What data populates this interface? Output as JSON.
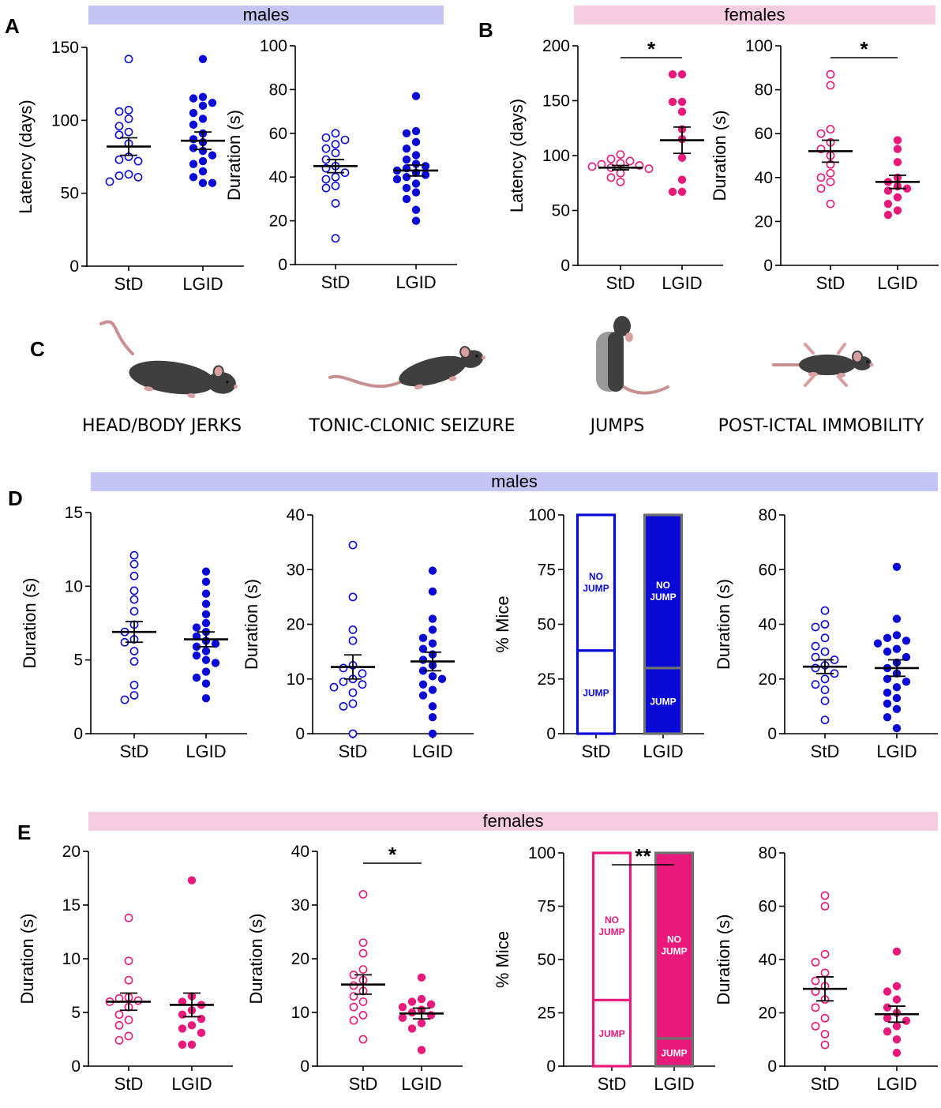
{
  "colors": {
    "male": "#0a0ad6",
    "female": "#e8197a",
    "male_banner": "#c4c4f5",
    "female_banner": "#f5cce0",
    "axis": "#000000",
    "bar_edge_lgid": "#707070"
  },
  "banners": [
    {
      "id": "b1",
      "text": "males",
      "sex": "male"
    },
    {
      "id": "b2",
      "text": "females",
      "sex": "female"
    },
    {
      "id": "b3",
      "text": "males",
      "sex": "male"
    },
    {
      "id": "b4",
      "text": "females",
      "sex": "female"
    }
  ],
  "panel_letters": [
    "A",
    "B",
    "C",
    "D",
    "E"
  ],
  "behaviors": [
    {
      "label": "HEAD/BODY JERKS",
      "icon": "mouse-running-icon"
    },
    {
      "label": "TONIC-CLONIC SEIZURE",
      "icon": "mouse-crouching-icon"
    },
    {
      "label": "JUMPS",
      "icon": "mouse-jumping-icon"
    },
    {
      "label": "POST-ICTAL IMMOBILITY",
      "icon": "mouse-lying-icon"
    }
  ],
  "chart_data": [
    {
      "id": "A1",
      "type": "scatter",
      "panel": "A",
      "sex": "male",
      "ylabel": "Latency (days)",
      "ylim": [
        0,
        150
      ],
      "yticks": [
        0,
        50,
        100,
        150
      ],
      "categories": [
        "StD",
        "LGID"
      ],
      "groups": [
        {
          "name": "StD",
          "values": [
            142,
            107,
            106,
            101,
            96,
            92,
            90,
            84,
            75,
            73,
            72,
            63,
            62,
            61,
            58
          ],
          "mean": 82,
          "sem": 6
        },
        {
          "name": "LGID",
          "values": [
            142,
            116,
            115,
            112,
            110,
            105,
            101,
            97,
            91,
            87,
            85,
            81,
            79,
            76,
            72,
            70,
            65,
            61,
            57,
            57
          ],
          "mean": 86,
          "sem": 6
        }
      ]
    },
    {
      "id": "A2",
      "type": "scatter",
      "panel": "A",
      "sex": "male",
      "ylabel": "Duration (s)",
      "ylim": [
        0,
        100
      ],
      "yticks": [
        0,
        20,
        40,
        60,
        80,
        100
      ],
      "categories": [
        "StD",
        "LGID"
      ],
      "groups": [
        {
          "name": "StD",
          "values": [
            60,
            58,
            57,
            55,
            53,
            51,
            48,
            45,
            44,
            42,
            40,
            39,
            36,
            35,
            28,
            12
          ],
          "mean": 45,
          "sem": 3
        },
        {
          "name": "LGID",
          "values": [
            77,
            61,
            60,
            56,
            53,
            50,
            48,
            46,
            45,
            44,
            43,
            42,
            41,
            40,
            39,
            37,
            35,
            33,
            30,
            25,
            20
          ],
          "mean": 43,
          "sem": 2.5
        }
      ]
    },
    {
      "id": "B1",
      "type": "scatter",
      "panel": "B",
      "sex": "female",
      "ylabel": "Latency (days)",
      "ylim": [
        0,
        200
      ],
      "yticks": [
        0,
        50,
        100,
        150,
        200
      ],
      "categories": [
        "StD",
        "LGID"
      ],
      "significance": "*",
      "groups": [
        {
          "name": "StD",
          "values": [
            101,
            97,
            95,
            93,
            92,
            91,
            90,
            89,
            88,
            84,
            80,
            76
          ],
          "mean": 89,
          "sem": 2
        },
        {
          "name": "LGID",
          "values": [
            174,
            174,
            149,
            149,
            140,
            124,
            115,
            98,
            78,
            67,
            67
          ],
          "mean": 114,
          "sem": 12
        }
      ]
    },
    {
      "id": "B2",
      "type": "scatter",
      "panel": "B",
      "sex": "female",
      "ylabel": "Duration (s)",
      "ylim": [
        0,
        100
      ],
      "yticks": [
        0,
        20,
        40,
        60,
        80,
        100
      ],
      "categories": [
        "StD",
        "LGID"
      ],
      "significance": "*",
      "groups": [
        {
          "name": "StD",
          "values": [
            87,
            82,
            62,
            60,
            56,
            53,
            50,
            46,
            42,
            40,
            38,
            35,
            28
          ],
          "mean": 52,
          "sem": 5
        },
        {
          "name": "LGID",
          "values": [
            57,
            53,
            47,
            40,
            38,
            36,
            35,
            34,
            31,
            28,
            25,
            23
          ],
          "mean": 38,
          "sem": 3
        }
      ]
    },
    {
      "id": "D1",
      "type": "scatter",
      "panel": "D",
      "sex": "male",
      "ylabel": "Duration (s)",
      "ylim": [
        0,
        15
      ],
      "yticks": [
        0,
        5,
        10,
        15
      ],
      "categories": [
        "StD",
        "LGID"
      ],
      "groups": [
        {
          "name": "StD",
          "values": [
            12.1,
            11.5,
            10.7,
            9.7,
            9.1,
            8.3,
            7.4,
            6.9,
            6.4,
            6.2,
            5.6,
            4.9,
            3.3,
            2.6,
            2.3
          ],
          "mean": 6.9,
          "sem": 0.7
        },
        {
          "name": "LGID",
          "values": [
            11,
            10.3,
            9.5,
            8.8,
            8.1,
            7.5,
            7.2,
            6.9,
            6.6,
            6.3,
            6.1,
            5.9,
            5.6,
            5.3,
            5,
            4.8,
            4.2,
            3.8,
            3.4,
            2.4
          ],
          "mean": 6.4,
          "sem": 0.5
        }
      ]
    },
    {
      "id": "D2",
      "type": "scatter",
      "panel": "D",
      "sex": "male",
      "ylabel": "Duration (s)",
      "ylim": [
        0,
        40
      ],
      "yticks": [
        0,
        10,
        20,
        30,
        40
      ],
      "categories": [
        "StD",
        "LGID"
      ],
      "groups": [
        {
          "name": "StD",
          "values": [
            34.5,
            25,
            19,
            17,
            12.5,
            12,
            11,
            10,
            9.5,
            9,
            8.5,
            7.5,
            5.5,
            5,
            0
          ],
          "mean": 12.2,
          "sem": 2.2
        },
        {
          "name": "LGID",
          "values": [
            29.8,
            26,
            21,
            19,
            17.5,
            16.5,
            15.5,
            14.5,
            13.5,
            12.5,
            11.5,
            10.5,
            10,
            9,
            8,
            7,
            5,
            3,
            0
          ],
          "mean": 13.2,
          "sem": 1.7
        }
      ]
    },
    {
      "id": "D3",
      "type": "stacked_bar",
      "panel": "D",
      "sex": "male",
      "ylabel": "% Mice",
      "ylim": [
        0,
        100
      ],
      "yticks": [
        0,
        25,
        50,
        75,
        100
      ],
      "categories": [
        "StD",
        "LGID"
      ],
      "series": [
        {
          "name": "JUMP",
          "values": [
            38,
            30
          ]
        },
        {
          "name": "NO JUMP",
          "values": [
            62,
            70
          ]
        }
      ]
    },
    {
      "id": "D4",
      "type": "scatter",
      "panel": "D",
      "sex": "male",
      "ylabel": "Duration (s)",
      "ylim": [
        0,
        80
      ],
      "yticks": [
        0,
        20,
        40,
        60,
        80
      ],
      "categories": [
        "StD",
        "LGID"
      ],
      "groups": [
        {
          "name": "StD",
          "values": [
            45,
            40,
            39,
            35,
            32,
            30,
            28,
            27,
            25,
            24,
            22,
            20,
            18,
            16,
            12,
            5
          ],
          "mean": 24.5,
          "sem": 2.5
        },
        {
          "name": "LGID",
          "values": [
            61,
            42,
            36,
            35,
            34,
            33,
            31,
            30,
            28,
            26,
            24,
            22,
            20,
            19,
            17,
            15,
            13,
            11,
            9,
            6,
            2
          ],
          "mean": 24,
          "sem": 3
        }
      ]
    },
    {
      "id": "E1",
      "type": "scatter",
      "panel": "E",
      "sex": "female",
      "ylabel": "Duration (s)",
      "ylim": [
        0,
        20
      ],
      "yticks": [
        0,
        5,
        10,
        15,
        20
      ],
      "categories": [
        "StD",
        "LGID"
      ],
      "groups": [
        {
          "name": "StD",
          "values": [
            13.8,
            9.8,
            8,
            6.4,
            6.3,
            6.1,
            6,
            5.5,
            4.8,
            4.3,
            3.8,
            2.8,
            2.4
          ],
          "mean": 6,
          "sem": 0.8
        },
        {
          "name": "LGID",
          "values": [
            17.3,
            6.5,
            6,
            5.7,
            5.2,
            4.8,
            4.4,
            3.8,
            3.5,
            3.1,
            2,
            2
          ],
          "mean": 5.7,
          "sem": 1.1
        }
      ]
    },
    {
      "id": "E2",
      "type": "scatter",
      "panel": "E",
      "sex": "female",
      "ylabel": "Duration (s)",
      "ylim": [
        0,
        40
      ],
      "yticks": [
        0,
        10,
        20,
        30,
        40
      ],
      "categories": [
        "StD",
        "LGID"
      ],
      "significance": "*",
      "groups": [
        {
          "name": "StD",
          "values": [
            32,
            23,
            21,
            18,
            17,
            16,
            15,
            14,
            13,
            12,
            11,
            9.5,
            8.5,
            5
          ],
          "mean": 15.2,
          "sem": 1.8
        },
        {
          "name": "LGID",
          "values": [
            16.5,
            12.5,
            12,
            11.5,
            11,
            10.5,
            10,
            9.5,
            9,
            8,
            7,
            3
          ],
          "mean": 9.8,
          "sem": 1
        }
      ]
    },
    {
      "id": "E3",
      "type": "stacked_bar",
      "panel": "E",
      "sex": "female",
      "ylabel": "% Mice",
      "ylim": [
        0,
        100
      ],
      "yticks": [
        0,
        25,
        50,
        75,
        100
      ],
      "categories": [
        "StD",
        "LGID"
      ],
      "significance": "**",
      "series": [
        {
          "name": "JUMP",
          "values": [
            31,
            13
          ]
        },
        {
          "name": "NO JUMP",
          "values": [
            69,
            87
          ]
        }
      ]
    },
    {
      "id": "E4",
      "type": "scatter",
      "panel": "E",
      "sex": "female",
      "ylabel": "Duration (s)",
      "ylim": [
        0,
        80
      ],
      "yticks": [
        0,
        20,
        40,
        60,
        80
      ],
      "categories": [
        "StD",
        "LGID"
      ],
      "groups": [
        {
          "name": "StD",
          "values": [
            64,
            60,
            42,
            39,
            35,
            32,
            30,
            28,
            25,
            22,
            18,
            15,
            12,
            8
          ],
          "mean": 29,
          "sem": 4.5
        },
        {
          "name": "LGID",
          "values": [
            43,
            30,
            28,
            25,
            22,
            20,
            18,
            17,
            15,
            13,
            10,
            5
          ],
          "mean": 19.5,
          "sem": 3
        }
      ]
    }
  ]
}
